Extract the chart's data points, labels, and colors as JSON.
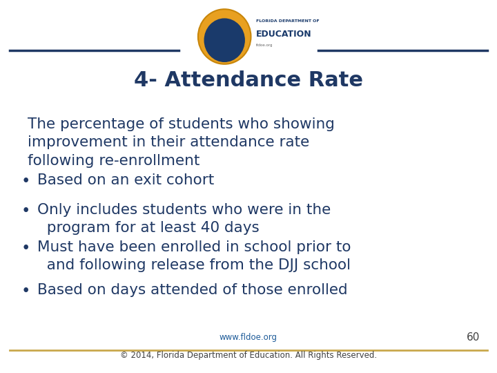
{
  "title": "4- Attendance Rate",
  "title_color": "#1F3864",
  "title_fontsize": 22,
  "background_color": "#ffffff",
  "header_line_color": "#1F3864",
  "footer_line_color": "#C9A84C",
  "body_text_color": "#1F3864",
  "body_fontsize": 15.5,
  "bullet_fontsize": 15.5,
  "intro_text": "The percentage of students who showing\nimprovement in their attendance rate\nfollowing re-enrollment",
  "bullets": [
    "Based on an exit cohort",
    "Only includes students who were in the\n  program for at least 40 days",
    "Must have been enrolled in school prior to\n  and following release from the DJJ school",
    "Based on days attended of those enrolled"
  ],
  "footer_url": "www.fldoe.org",
  "footer_copy": "© 2014, Florida Department of Education. All Rights Reserved.",
  "footer_page": "60",
  "footer_url_color": "#1F5C99",
  "footer_text_color": "#404040",
  "footer_fontsize": 8.5
}
